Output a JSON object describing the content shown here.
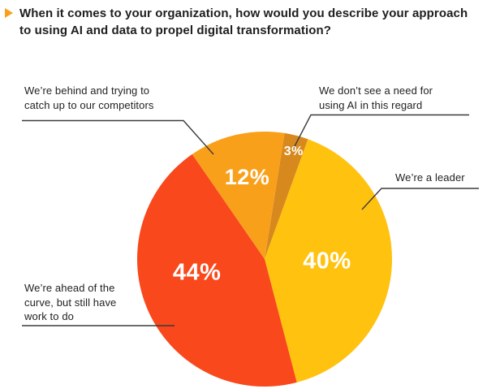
{
  "title": {
    "bullet_icon": "triangle-right-icon",
    "bullet_color": "#F9A01B",
    "text": "When it comes to your organization, how would you describe your approach\nto using AI and data to propel digital transformation?"
  },
  "chart_data": {
    "type": "pie",
    "title": "Approach to using AI and data to propel digital transformation",
    "direction": "clockwise",
    "start_angle_deg": 9,
    "legend_position": "callouts",
    "value_label_color": "#FFFFFF",
    "slices": [
      {
        "label": "We don't see a need for using AI in this regard",
        "value": 3,
        "display": "3%",
        "color": "#D8891E",
        "label_angle_deg": 15,
        "label_r_frac": 0.88,
        "label_font_px": 16
      },
      {
        "label": "We're a leader",
        "value": 40,
        "display": "40%",
        "color": "#FFC20E",
        "label_angle_deg": 91,
        "label_r_frac": 0.49,
        "label_font_px": 29
      },
      {
        "label": "We're ahead of the curve, but still have work to do",
        "value": 44,
        "display": "44%",
        "color": "#F8481C",
        "label_angle_deg": 259.5,
        "label_r_frac": 0.54,
        "label_font_px": 29
      },
      {
        "label": "We're behind and trying to catch up to our competitors",
        "value": 12,
        "display": "12%",
        "color": "#F9A01B",
        "label_angle_deg": 348,
        "label_r_frac": 0.66,
        "label_font_px": 27
      }
    ]
  },
  "callouts": {
    "behind": {
      "text": "We’re behind and trying to\ncatch up to our competitors"
    },
    "need": {
      "text": "We don’t see a need for\nusing AI in this regard"
    },
    "leader": {
      "text": "We’re a leader"
    },
    "ahead": {
      "text": "We’re ahead of the\ncurve, but still have\nwork to do"
    }
  }
}
